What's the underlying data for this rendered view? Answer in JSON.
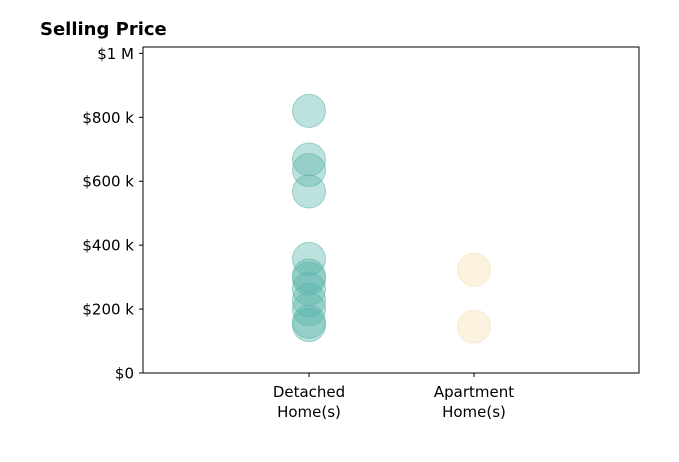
{
  "chart_data": {
    "type": "scatter",
    "title": "Selling Price",
    "xlabel": "",
    "ylabel": "",
    "categories": [
      [
        "Detached",
        "Home(s)"
      ],
      [
        "Apartment",
        "Home(s)"
      ]
    ],
    "ylim": [
      0,
      1020000
    ],
    "yticks": [
      {
        "value": 0,
        "label": "$0"
      },
      {
        "value": 200000,
        "label": "$200 k"
      },
      {
        "value": 400000,
        "label": "$400 k"
      },
      {
        "value": 600000,
        "label": "$600 k"
      },
      {
        "value": 800000,
        "label": "$800 k"
      },
      {
        "value": 1000000,
        "label": "$1 M"
      }
    ],
    "grid": false,
    "legend": "none",
    "series": [
      {
        "category_index": 0,
        "color": "#5ab4aa",
        "values": [
          820000,
          668000,
          635000,
          568000,
          357000,
          305000,
          295000,
          263000,
          228000,
          200000,
          160000,
          150000
        ]
      },
      {
        "category_index": 1,
        "color": "#f5deb0",
        "values": [
          323000,
          145000
        ]
      }
    ]
  }
}
